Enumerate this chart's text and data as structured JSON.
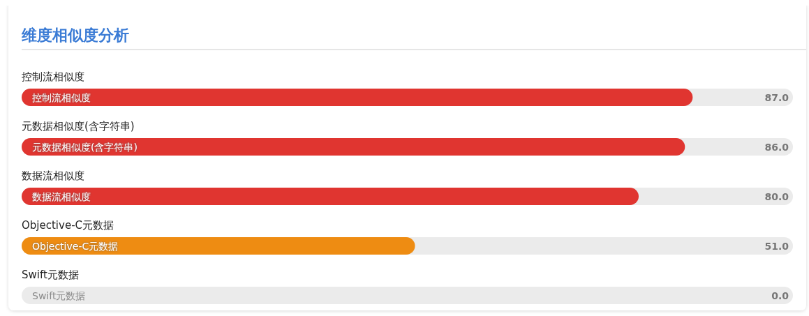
{
  "chart_data": {
    "type": "bar",
    "orientation": "horizontal",
    "title": "维度相似度分析",
    "categories": [
      "控制流相似度",
      "元数据相似度(含字符串)",
      "数据流相似度",
      "Objective-C元数据",
      "Swift元数据"
    ],
    "values": [
      87,
      86,
      80,
      51,
      0
    ],
    "value_labels": [
      "87.0",
      "86.0",
      "80.0",
      "51.0",
      "0.0"
    ],
    "colors": [
      "#e03530",
      "#e03530",
      "#e03530",
      "#ee8c12",
      "#bdbdbd"
    ],
    "xlim": [
      0,
      100
    ]
  }
}
